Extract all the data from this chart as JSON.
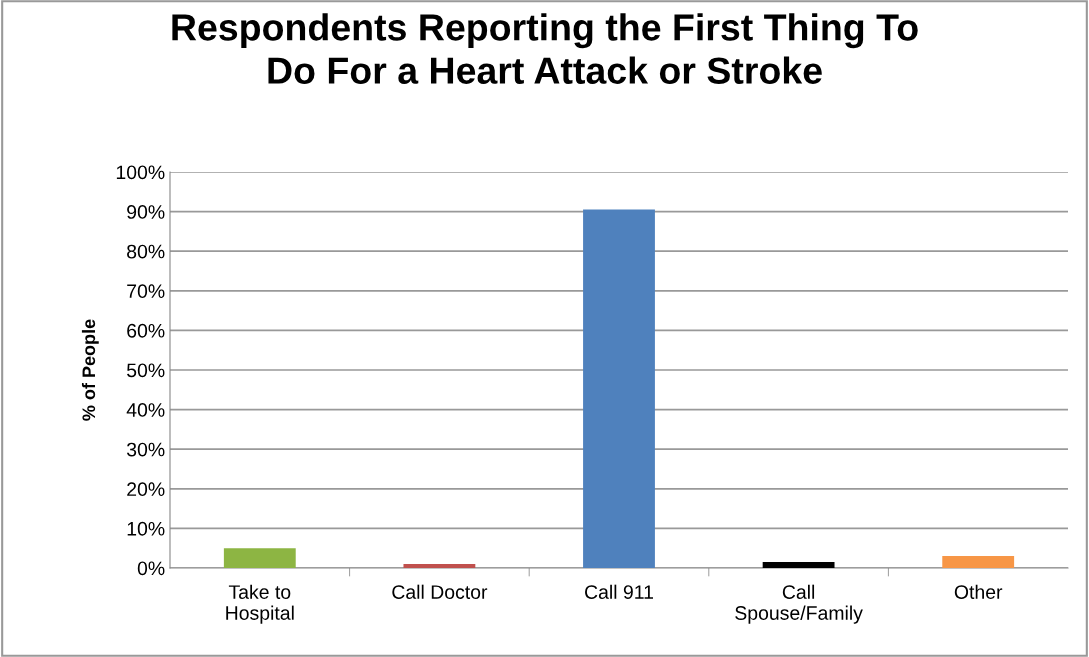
{
  "chart_data": {
    "type": "bar",
    "title": "Respondents Reporting the First Thing To\nDo For a Heart Attack or Stroke",
    "ylabel": "% of People",
    "categories": [
      "Take to\nHospital",
      "Call Doctor",
      "Call 911",
      "Call\nSpouse/Family",
      "Other"
    ],
    "values": [
      5,
      1,
      90.5,
      1.5,
      3
    ],
    "colors": [
      "#8db543",
      "#c0504d",
      "#4f81bd",
      "#000000",
      "#f79646"
    ],
    "ylim": [
      0,
      100
    ],
    "yticks": [
      {
        "value": 0,
        "label": "0%"
      },
      {
        "value": 10,
        "label": "10%"
      },
      {
        "value": 20,
        "label": "20%"
      },
      {
        "value": 30,
        "label": "30%"
      },
      {
        "value": 40,
        "label": "40%"
      },
      {
        "value": 50,
        "label": "50%"
      },
      {
        "value": 60,
        "label": "60%"
      },
      {
        "value": 70,
        "label": "70%"
      },
      {
        "value": 80,
        "label": "80%"
      },
      {
        "value": 90,
        "label": "90%"
      },
      {
        "value": 100,
        "label": "100%"
      }
    ],
    "grid": "y",
    "legend": false
  }
}
